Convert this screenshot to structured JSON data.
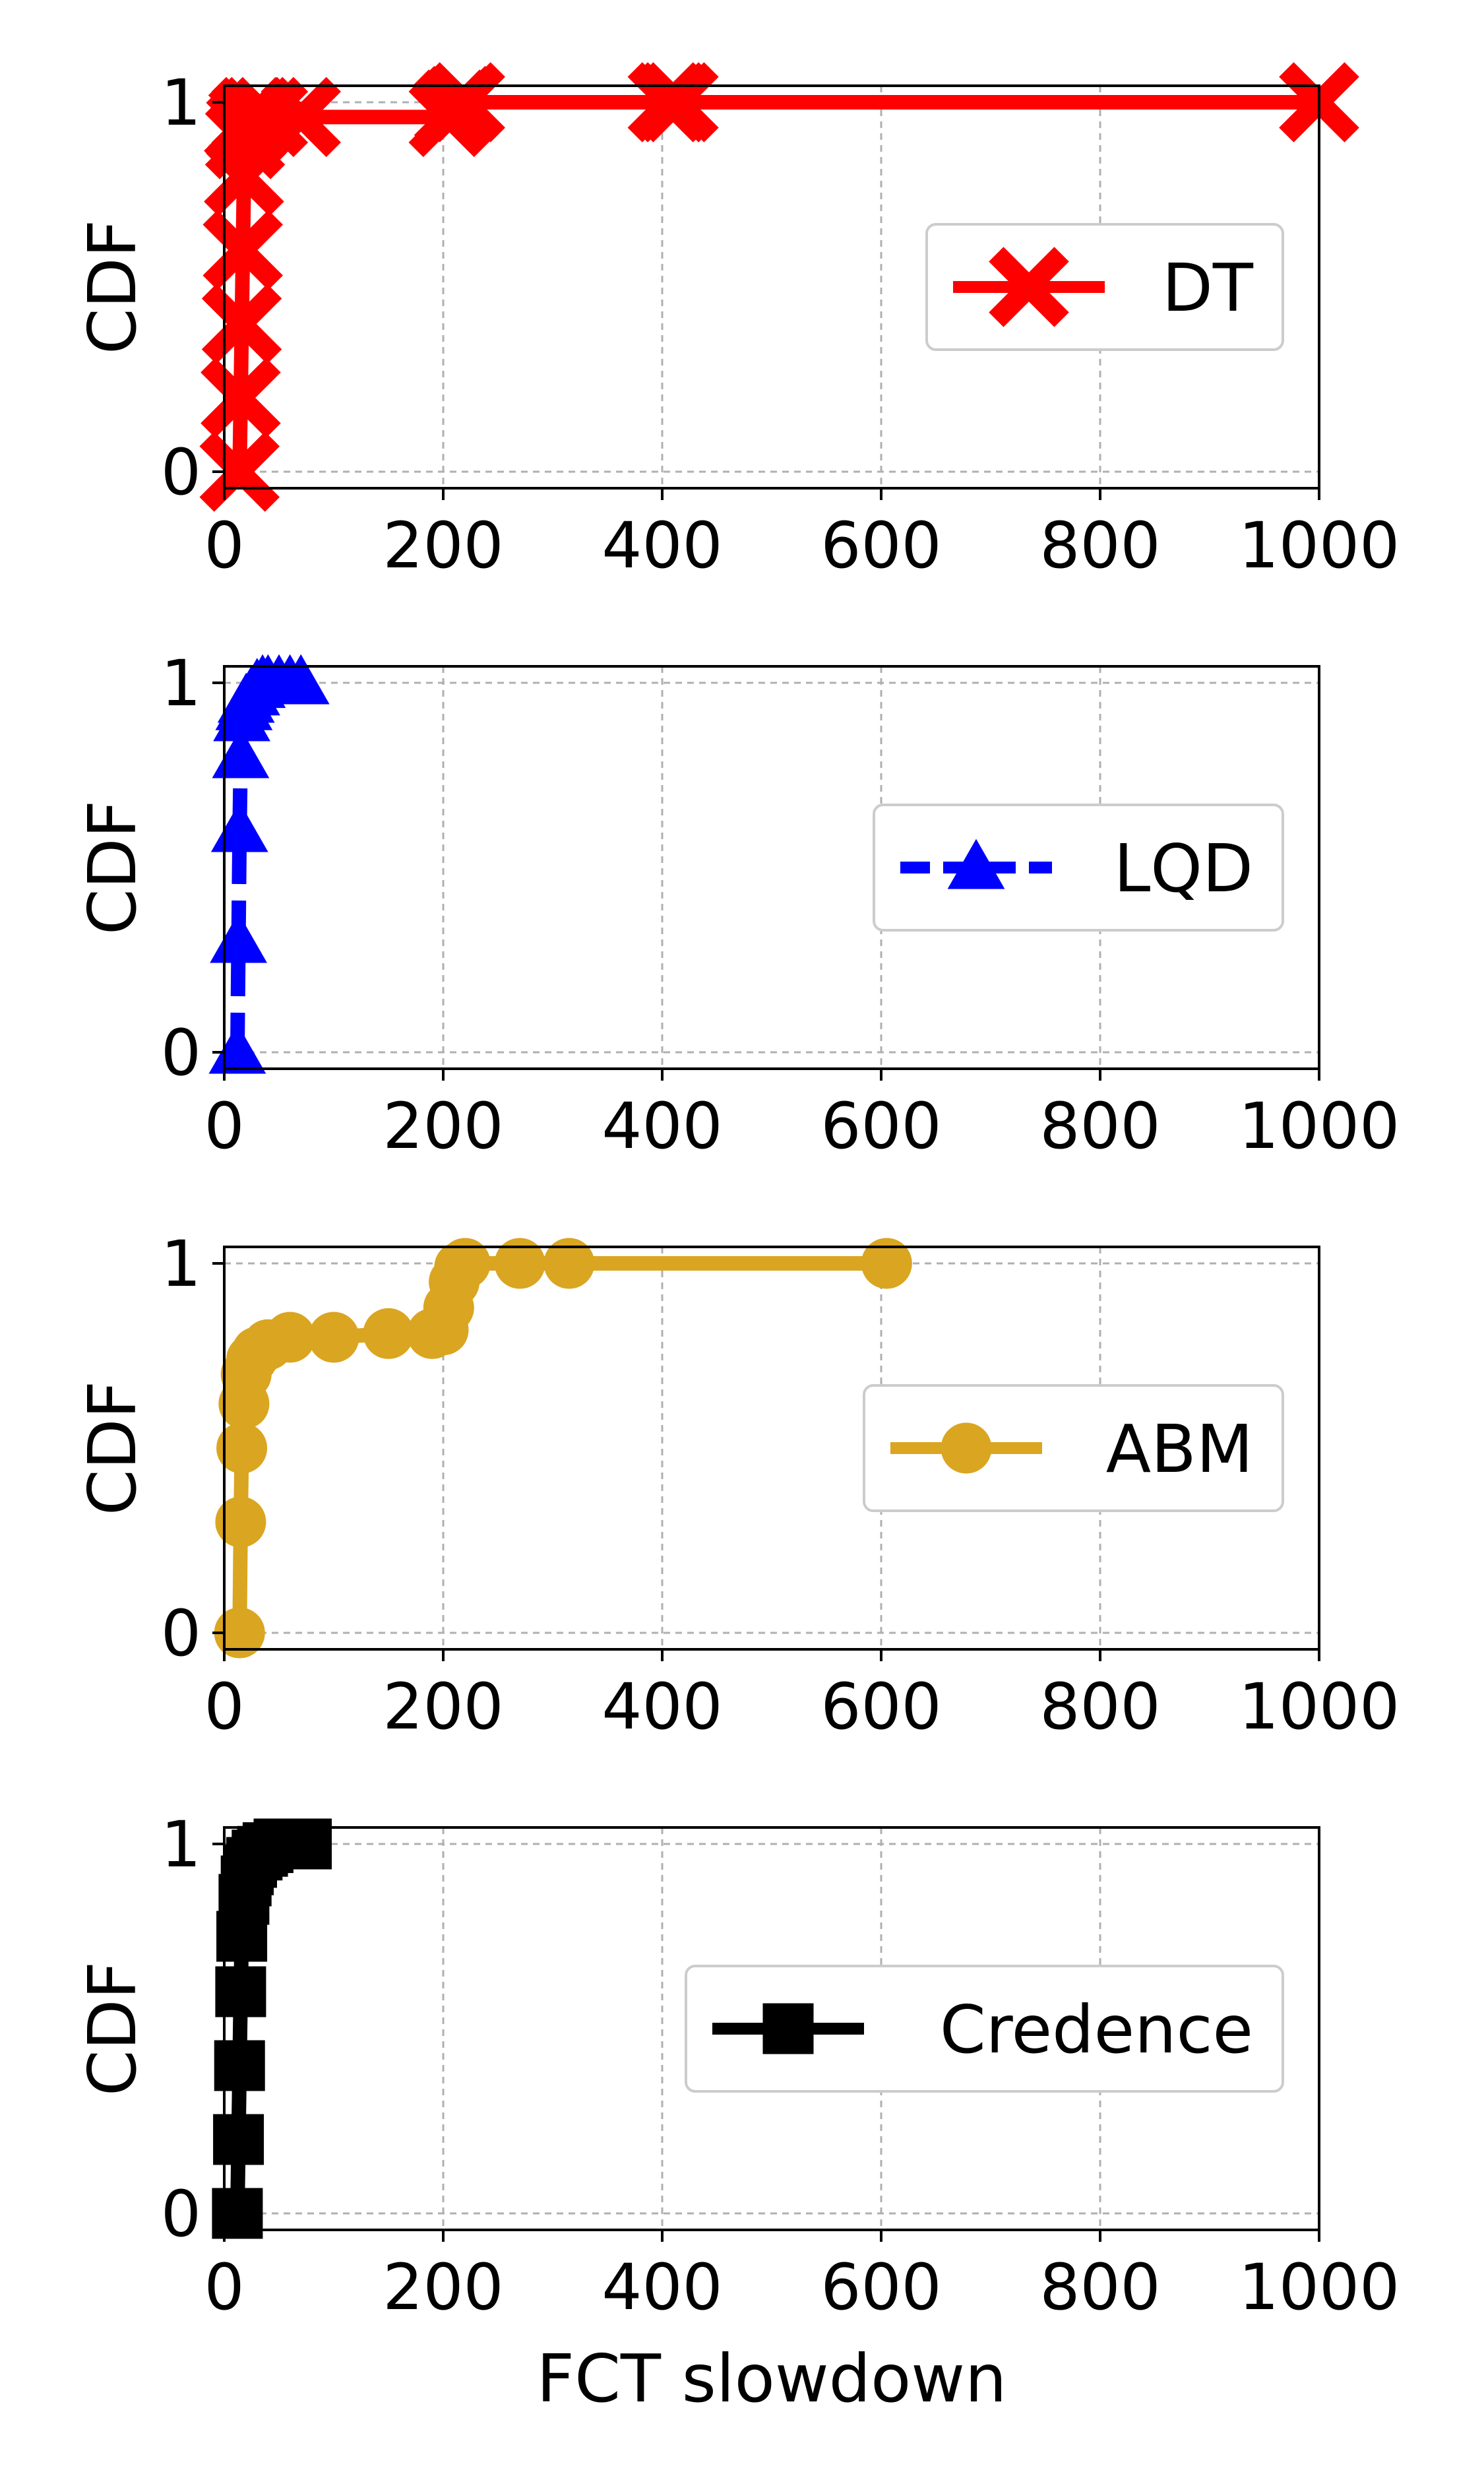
{
  "chart_data": [
    {
      "type": "line",
      "ylabel": "CDF",
      "xlabel": "",
      "xlim": [
        0,
        1000
      ],
      "ylim": [
        0,
        1
      ],
      "xticks": [
        0,
        200,
        400,
        600,
        800,
        1000
      ],
      "yticks": [
        0,
        1
      ],
      "grid": true,
      "legend_placement": "center-right",
      "series": [
        {
          "name": "DT",
          "color": "#ff0000",
          "line_style": "solid",
          "marker": "x-icon",
          "x": [
            14,
            15,
            16,
            17,
            18,
            19,
            20,
            22,
            25,
            30,
            40,
            70,
            205,
            210,
            215,
            220,
            405,
            410,
            415,
            1000
          ],
          "y": [
            0.0,
            0.2,
            0.4,
            0.6,
            0.8,
            0.9,
            0.93,
            0.95,
            0.96,
            0.96,
            0.96,
            0.96,
            0.96,
            0.98,
            0.99,
            1.0,
            1.0,
            1.0,
            1.0,
            1.0
          ]
        }
      ]
    },
    {
      "type": "line",
      "ylabel": "CDF",
      "xlabel": "",
      "xlim": [
        0,
        1000
      ],
      "ylim": [
        0,
        1
      ],
      "xticks": [
        0,
        200,
        400,
        600,
        800,
        1000
      ],
      "yticks": [
        0,
        1
      ],
      "grid": true,
      "legend_placement": "center-right",
      "series": [
        {
          "name": "LQD",
          "color": "#0000ff",
          "line_style": "dashed",
          "marker": "triangle-icon",
          "x": [
            12,
            13,
            14,
            15,
            16,
            18,
            20,
            25,
            30,
            35,
            40,
            50,
            60,
            70
          ],
          "y": [
            0.0,
            0.3,
            0.6,
            0.8,
            0.9,
            0.93,
            0.95,
            0.97,
            0.99,
            1.0,
            1.0,
            1.0,
            1.0,
            1.0
          ]
        }
      ]
    },
    {
      "type": "line",
      "ylabel": "CDF",
      "xlabel": "",
      "xlim": [
        0,
        1000
      ],
      "ylim": [
        0,
        1
      ],
      "xticks": [
        0,
        200,
        400,
        600,
        800,
        1000
      ],
      "yticks": [
        0,
        1
      ],
      "grid": true,
      "legend_placement": "center-right",
      "series": [
        {
          "name": "ABM",
          "color": "#daa520",
          "line_style": "solid",
          "marker": "circle-icon",
          "x": [
            14,
            15,
            16,
            18,
            20,
            25,
            30,
            40,
            60,
            100,
            150,
            190,
            200,
            205,
            210,
            215,
            220,
            270,
            315,
            605
          ],
          "y": [
            0.0,
            0.3,
            0.5,
            0.62,
            0.7,
            0.74,
            0.76,
            0.78,
            0.8,
            0.8,
            0.81,
            0.81,
            0.82,
            0.88,
            0.95,
            0.99,
            1.0,
            1.0,
            1.0,
            1.0
          ]
        }
      ]
    },
    {
      "type": "line",
      "ylabel": "CDF",
      "xlabel": "FCT slowdown",
      "xlim": [
        0,
        1000
      ],
      "ylim": [
        0,
        1
      ],
      "xticks": [
        0,
        200,
        400,
        600,
        800,
        1000
      ],
      "yticks": [
        0,
        1
      ],
      "grid": true,
      "legend_placement": "center-right",
      "series": [
        {
          "name": "Credence",
          "color": "#000000",
          "line_style": "solid",
          "marker": "square-icon",
          "x": [
            12,
            13,
            14,
            15,
            16,
            18,
            20,
            22,
            25,
            30,
            35,
            40,
            50,
            60,
            70,
            75
          ],
          "y": [
            0.0,
            0.2,
            0.4,
            0.6,
            0.75,
            0.85,
            0.9,
            0.93,
            0.95,
            0.97,
            0.98,
            0.99,
            1.0,
            1.0,
            1.0,
            1.0
          ]
        }
      ]
    }
  ]
}
